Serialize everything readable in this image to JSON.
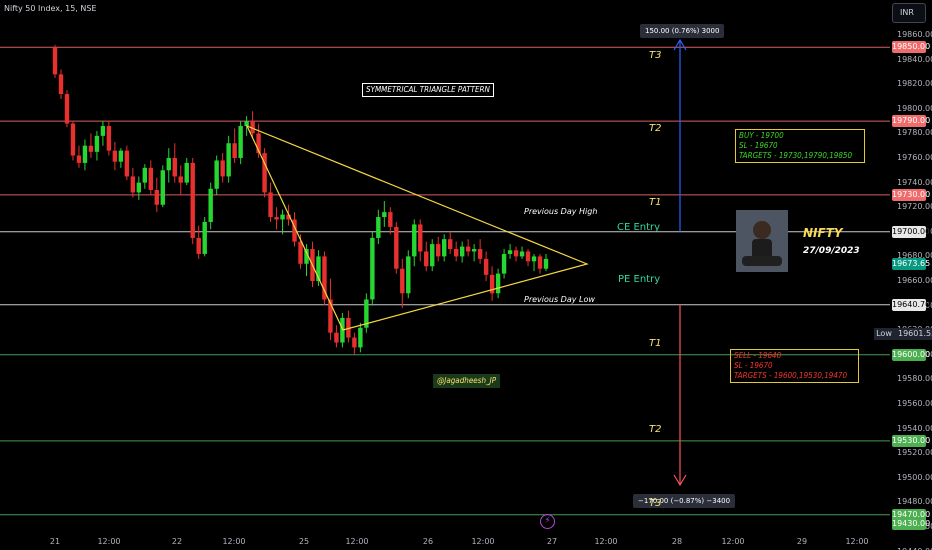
{
  "header": {
    "symbol": "Nifty 50 Index, 15, NSE",
    "currency": "INR"
  },
  "y_axis": {
    "ticks": [
      "19860.00",
      "19840.00",
      "19820.00",
      "19800.00",
      "19780.00",
      "19760.00",
      "19740.00",
      "19720.00",
      "19700.00",
      "19680.00",
      "19660.00",
      "19640.00",
      "19620.00",
      "19600.00",
      "19580.00",
      "19560.00",
      "19540.00",
      "19520.00",
      "19500.00",
      "19480.00",
      "19460.00",
      "19440.00"
    ]
  },
  "x_axis": {
    "ticks": [
      "21",
      "12:00",
      "22",
      "12:00",
      "25",
      "12:00",
      "26",
      "12:00",
      "27",
      "12:00",
      "28",
      "12:00",
      "29",
      "12:00"
    ]
  },
  "levels": [
    {
      "price": 19850,
      "label": "19850.00",
      "target": "T3",
      "color": "#f06c6c"
    },
    {
      "price": 19790,
      "label": "19790.00",
      "target": "T2",
      "color": "#f06c6c"
    },
    {
      "price": 19730,
      "label": "19730.00",
      "target": "T1",
      "color": "#f06c6c"
    },
    {
      "price": 19700,
      "label": "19700.00",
      "target": "",
      "color": "#e0e0e0"
    },
    {
      "price": 19640.7,
      "label": "19640.70",
      "target": "",
      "color": "#e0e0e0"
    },
    {
      "price": 19600,
      "label": "19600.00",
      "target": "T1",
      "color": "#4caf50"
    },
    {
      "price": 19530,
      "label": "19530.00",
      "target": "T2",
      "color": "#4caf50"
    },
    {
      "price": 19470,
      "label": "19470.00",
      "target": "T3",
      "color": "#4caf50"
    }
  ],
  "price_tags": {
    "current": "19673.65",
    "current_color": "#089981",
    "low_label": "Low",
    "low_value": "19601.55",
    "extra": "19430.00"
  },
  "annotations": {
    "pattern_title": "SYMMETRICAL TRIANGLE PATTERN",
    "prev_high": "Previous Day High",
    "prev_low": "Previous Day Low",
    "ce_entry": "CE Entry",
    "pe_entry": "PE Entry",
    "handle": "@Jagadheesh_JP",
    "nifty": "NIFTY",
    "date": "27/09/2023",
    "buy_box": [
      "BUY - 19700",
      "SL - 19670",
      "TARGETS - 19730,19790,19850"
    ],
    "sell_box": [
      "SELL - 19640",
      "SL - 19670",
      "TARGETS - 19600,19530,19470"
    ],
    "measure_up": "150.00 (0.76%) 3000",
    "measure_down": "−170.00 (−0.87%) −3400",
    "events_icon": "lightning-icon"
  },
  "colors": {
    "up": "#26d631",
    "down": "#e8302f",
    "triangle": "#f5d742",
    "measure_up": "#2962ff",
    "measure_down": "#f7525f"
  },
  "chart_data": {
    "type": "candlestick",
    "ohlc": [
      [
        19850,
        19852,
        19825,
        19828
      ],
      [
        19828,
        19832,
        19808,
        19812
      ],
      [
        19812,
        19815,
        19785,
        19788
      ],
      [
        19788,
        19790,
        19758,
        19762
      ],
      [
        19762,
        19770,
        19752,
        19756
      ],
      [
        19756,
        19775,
        19750,
        19770
      ],
      [
        19770,
        19780,
        19760,
        19765
      ],
      [
        19765,
        19782,
        19758,
        19778
      ],
      [
        19778,
        19790,
        19770,
        19786
      ],
      [
        19786,
        19790,
        19762,
        19766
      ],
      [
        19766,
        19773,
        19750,
        19757
      ],
      [
        19757,
        19768,
        19752,
        19766
      ],
      [
        19766,
        19770,
        19742,
        19745
      ],
      [
        19745,
        19752,
        19728,
        19732
      ],
      [
        19732,
        19745,
        19726,
        19740
      ],
      [
        19740,
        19755,
        19735,
        19752
      ],
      [
        19752,
        19758,
        19730,
        19734
      ],
      [
        19734,
        19744,
        19716,
        19722
      ],
      [
        19722,
        19754,
        19720,
        19750
      ],
      [
        19750,
        19768,
        19740,
        19760
      ],
      [
        19760,
        19772,
        19740,
        19745
      ],
      [
        19745,
        19754,
        19730,
        19740
      ],
      [
        19740,
        19760,
        19738,
        19756
      ],
      [
        19756,
        19760,
        19690,
        19695
      ],
      [
        19695,
        19705,
        19678,
        19682
      ],
      [
        19682,
        19712,
        19680,
        19708
      ],
      [
        19708,
        19740,
        19702,
        19735
      ],
      [
        19735,
        19762,
        19730,
        19758
      ],
      [
        19758,
        19764,
        19740,
        19745
      ],
      [
        19745,
        19778,
        19740,
        19772
      ],
      [
        19772,
        19784,
        19756,
        19760
      ],
      [
        19760,
        19790,
        19755,
        19786
      ],
      [
        19786,
        19794,
        19778,
        19790
      ],
      [
        19790,
        19798,
        19776,
        19780
      ],
      [
        19780,
        19788,
        19760,
        19764
      ],
      [
        19764,
        19768,
        19728,
        19732
      ],
      [
        19732,
        19740,
        19708,
        19712
      ],
      [
        19712,
        19720,
        19702,
        19710
      ],
      [
        19710,
        19718,
        19698,
        19714
      ],
      [
        19714,
        19722,
        19705,
        19710
      ],
      [
        19710,
        19716,
        19688,
        19692
      ],
      [
        19692,
        19698,
        19670,
        19674
      ],
      [
        19674,
        19690,
        19664,
        19686
      ],
      [
        19686,
        19692,
        19655,
        19660
      ],
      [
        19660,
        19685,
        19656,
        19680
      ],
      [
        19680,
        19684,
        19640,
        19645
      ],
      [
        19645,
        19662,
        19612,
        19618
      ],
      [
        19618,
        19624,
        19606,
        19610
      ],
      [
        19610,
        19634,
        19606,
        19630
      ],
      [
        19630,
        19636,
        19610,
        19614
      ],
      [
        19614,
        19618,
        19600,
        19606
      ],
      [
        19606,
        19626,
        19602,
        19622
      ],
      [
        19622,
        19650,
        19618,
        19645
      ],
      [
        19645,
        19700,
        19640,
        19695
      ],
      [
        19695,
        19718,
        19690,
        19712
      ],
      [
        19712,
        19725,
        19704,
        19716
      ],
      [
        19716,
        19720,
        19698,
        19704
      ],
      [
        19704,
        19708,
        19666,
        19670
      ],
      [
        19670,
        19678,
        19638,
        19650
      ],
      [
        19650,
        19685,
        19646,
        19680
      ],
      [
        19680,
        19710,
        19672,
        19706
      ],
      [
        19706,
        19710,
        19676,
        19684
      ],
      [
        19684,
        19692,
        19668,
        19672
      ],
      [
        19672,
        19694,
        19668,
        19690
      ],
      [
        19690,
        19696,
        19676,
        19680
      ],
      [
        19680,
        19698,
        19676,
        19694
      ],
      [
        19694,
        19700,
        19682,
        19686
      ],
      [
        19686,
        19692,
        19676,
        19680
      ],
      [
        19680,
        19692,
        19675,
        19688
      ],
      [
        19688,
        19694,
        19680,
        19684
      ],
      [
        19684,
        19690,
        19676,
        19686
      ],
      [
        19686,
        19694,
        19674,
        19678
      ],
      [
        19678,
        19684,
        19660,
        19665
      ],
      [
        19665,
        19672,
        19644,
        19650
      ],
      [
        19650,
        19670,
        19646,
        19666
      ],
      [
        19666,
        19686,
        19662,
        19682
      ],
      [
        19682,
        19690,
        19678,
        19685
      ],
      [
        19685,
        19688,
        19676,
        19680
      ],
      [
        19680,
        19688,
        19678,
        19684
      ],
      [
        19684,
        19686,
        19672,
        19676
      ],
      [
        19676,
        19682,
        19668,
        19680
      ],
      [
        19680,
        19682,
        19666,
        19670
      ],
      [
        19670,
        19682,
        19668,
        19678
      ]
    ],
    "pattern": "symmetrical-triangle",
    "ylim": [
      19430,
      19870
    ]
  }
}
